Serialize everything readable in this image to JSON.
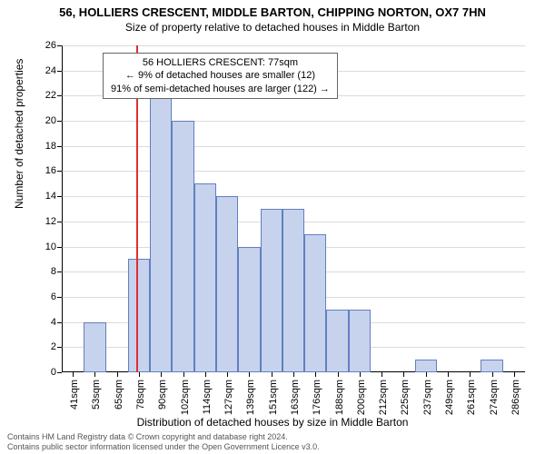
{
  "title_main": "56, HOLLIERS CRESCENT, MIDDLE BARTON, CHIPPING NORTON, OX7 7HN",
  "title_sub": "Size of property relative to detached houses in Middle Barton",
  "chart": {
    "type": "histogram",
    "ylabel": "Number of detached properties",
    "xlabel": "Distribution of detached houses by size in Middle Barton",
    "ylim": [
      0,
      26
    ],
    "ytick_step": 2,
    "bar_fill": "#c7d2ed",
    "bar_stroke": "#6080c0",
    "grid_color": "#b0b0b0",
    "background_color": "#ffffff",
    "reference_line": {
      "x_value": 77,
      "color": "#dd3030"
    },
    "x_start": 35,
    "bin_width_sqm": 12.5,
    "x_tick_labels": [
      "41sqm",
      "53sqm",
      "65sqm",
      "78sqm",
      "90sqm",
      "102sqm",
      "114sqm",
      "127sqm",
      "139sqm",
      "151sqm",
      "163sqm",
      "176sqm",
      "188sqm",
      "200sqm",
      "212sqm",
      "225sqm",
      "237sqm",
      "249sqm",
      "261sqm",
      "274sqm",
      "286sqm"
    ],
    "values": [
      0,
      4,
      0,
      9,
      22,
      20,
      15,
      14,
      10,
      13,
      13,
      11,
      5,
      5,
      0,
      0,
      1,
      0,
      0,
      1,
      0
    ],
    "annotation": {
      "lines": [
        "56 HOLLIERS CRESCENT: 77sqm",
        "← 9% of detached houses are smaller (12)",
        "91% of semi-detached houses are larger (122) →"
      ],
      "border_color": "#666666",
      "fontsize": 11
    }
  },
  "footer": {
    "line1": "Contains HM Land Registry data © Crown copyright and database right 2024.",
    "line2": "Contains public sector information licensed under the Open Government Licence v3.0."
  }
}
